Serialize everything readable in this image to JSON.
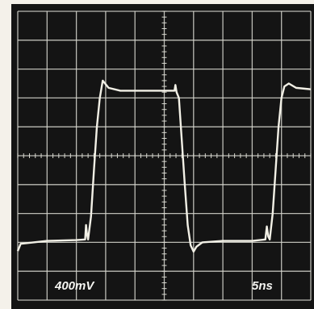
{
  "chart_data": {
    "type": "line",
    "x": [
      0,
      0.1,
      1,
      2,
      2.3,
      2.33,
      2.36,
      2.4,
      2.5,
      2.6,
      2.7,
      2.8,
      2.9,
      3.1,
      3.5,
      4,
      5,
      5.35,
      5.38,
      5.42,
      5.5,
      5.6,
      5.7,
      5.8,
      5.9,
      6.0,
      6.1,
      6.3,
      7,
      8,
      8.45,
      8.5,
      8.55,
      8.6,
      8.7,
      8.8,
      8.9,
      9.0,
      9.1,
      9.25,
      9.5,
      10
    ],
    "series": [
      {
        "color": "#f2f0e6",
        "values": [
          1.7,
          1.95,
          2.05,
          2.08,
          2.1,
          2.6,
          2.3,
          2.1,
          2.9,
          4.5,
          6.0,
          7.0,
          7.6,
          7.35,
          7.25,
          7.25,
          7.25,
          7.25,
          7.45,
          7.2,
          7.0,
          5.5,
          4.0,
          2.6,
          1.9,
          1.68,
          1.85,
          2.0,
          2.05,
          2.05,
          2.1,
          2.55,
          2.2,
          2.1,
          3.0,
          4.5,
          6.0,
          7.0,
          7.4,
          7.5,
          7.35,
          7.3
        ]
      }
    ],
    "xlim": [
      0,
      10
    ],
    "ylim": [
      0,
      10
    ],
    "xticks": [
      0,
      1,
      2,
      3,
      4,
      5,
      6,
      7,
      8,
      9,
      10
    ],
    "yticks": [
      0,
      1,
      2,
      3,
      4,
      5,
      6,
      7,
      8,
      9,
      10
    ],
    "grid": true,
    "y_scale": "400mV",
    "x_scale": "5ns"
  }
}
